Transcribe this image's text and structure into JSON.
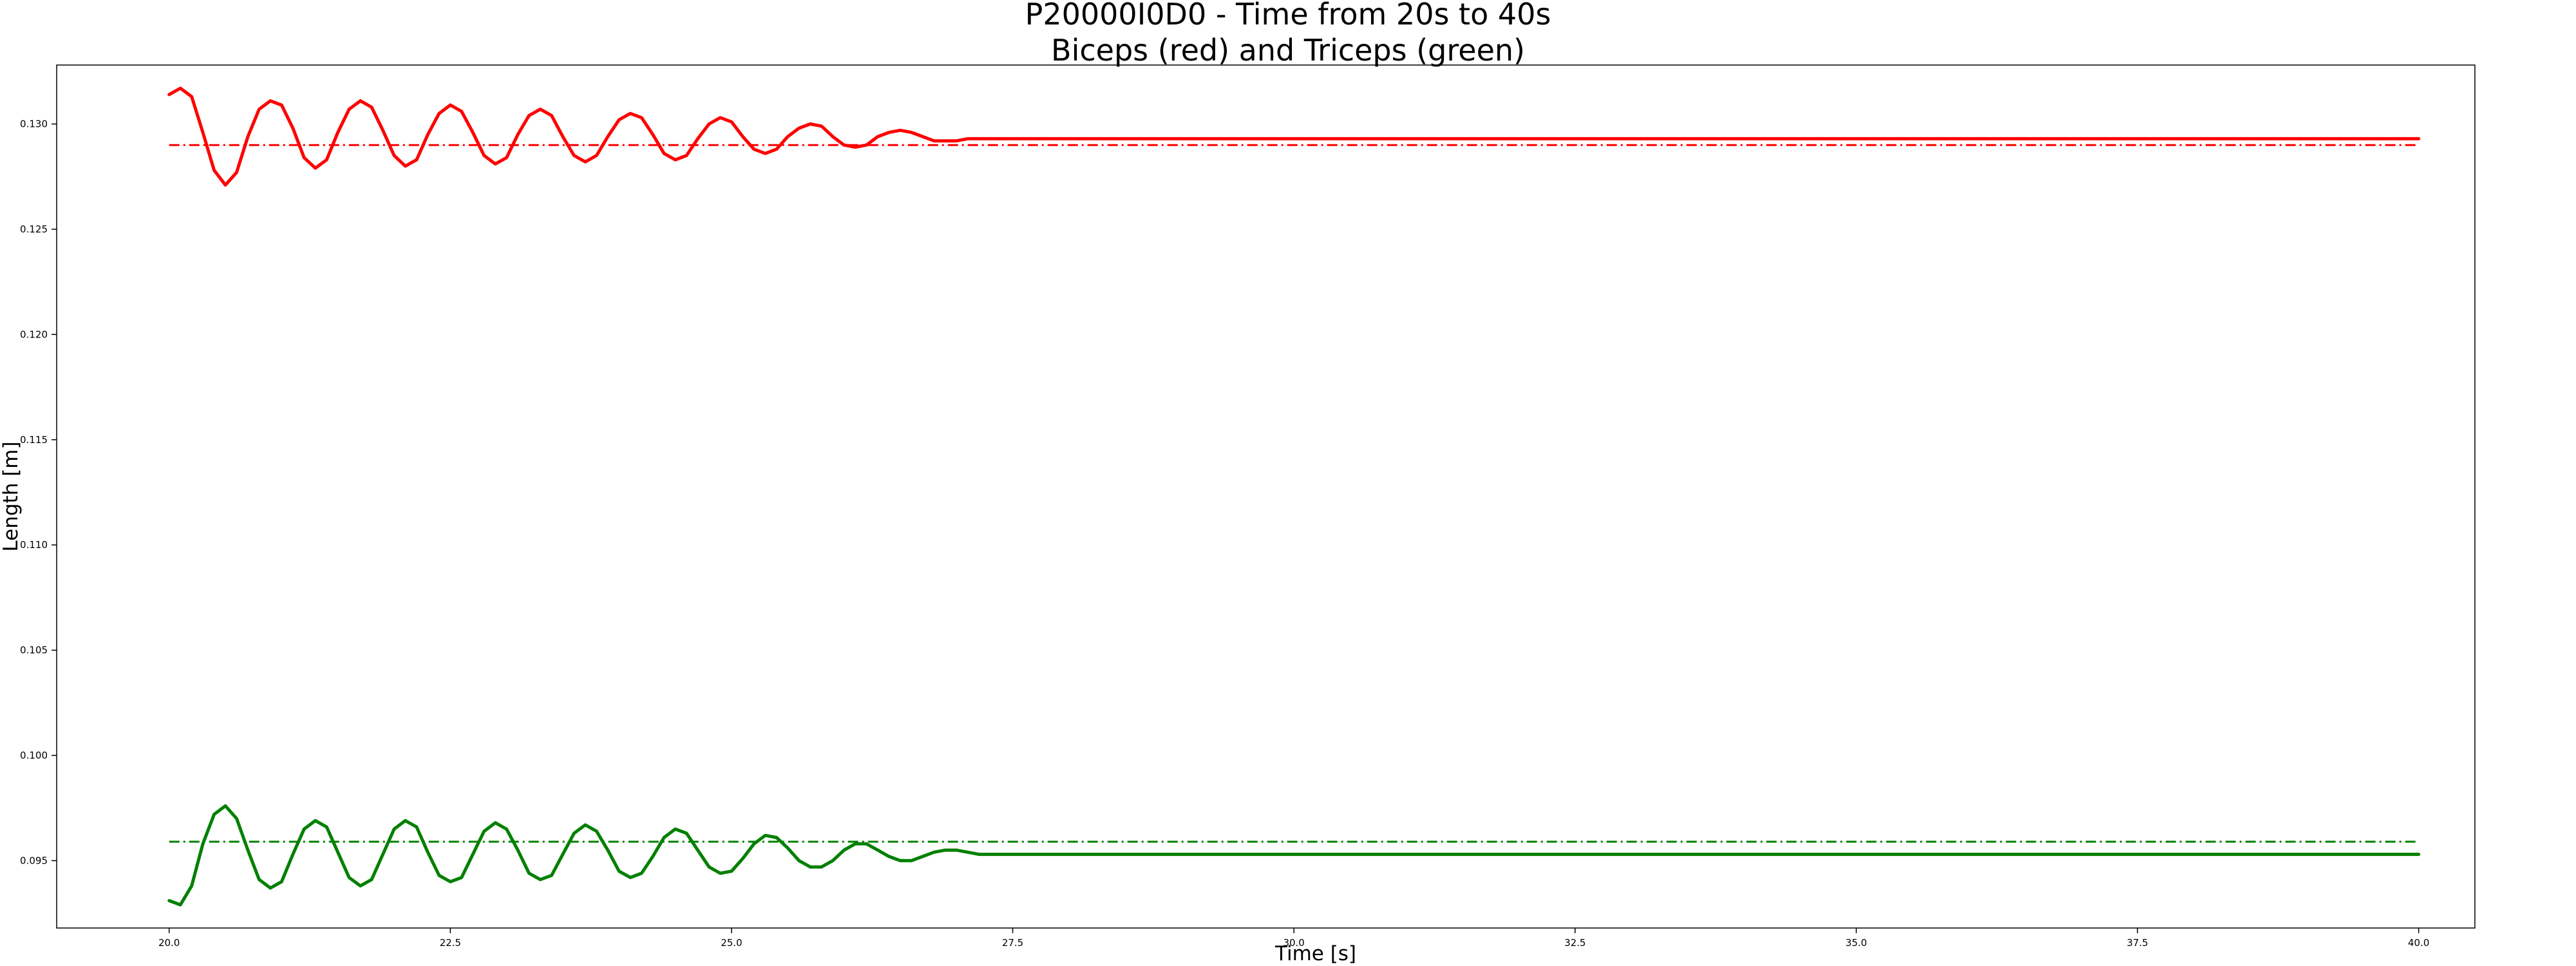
{
  "chart_data": {
    "type": "line",
    "title": "P20000I0D0 - Time from 20s to 40s",
    "subtitle": "Biceps (red) and Triceps (green)",
    "xlabel": "Time [s]",
    "ylabel": "Length [m]",
    "xlim": [
      19.0,
      40.5
    ],
    "ylim": [
      0.0918,
      0.1328
    ],
    "xticks": [
      20.0,
      22.5,
      25.0,
      27.5,
      30.0,
      32.5,
      35.0,
      37.5,
      40.0
    ],
    "xtick_labels": [
      "20.0",
      "22.5",
      "25.0",
      "27.5",
      "30.0",
      "32.5",
      "35.0",
      "37.5",
      "40.0"
    ],
    "yticks": [
      0.095,
      0.1,
      0.105,
      0.11,
      0.115,
      0.12,
      0.125,
      0.13
    ],
    "ytick_labels": [
      "0.095",
      "0.100",
      "0.105",
      "0.110",
      "0.115",
      "0.120",
      "0.125",
      "0.130"
    ],
    "grid": false,
    "legend": "none",
    "series": [
      {
        "style": "solid",
        "color": "#ff0000",
        "x": [
          20.0,
          20.1,
          20.2,
          20.3,
          20.4,
          20.5,
          20.6,
          20.7,
          20.8,
          20.9,
          21.0,
          21.1,
          21.2,
          21.3,
          21.4,
          21.5,
          21.6,
          21.7,
          21.8,
          21.9,
          22.0,
          22.1,
          22.2,
          22.3,
          22.4,
          22.5,
          22.6,
          22.7,
          22.8,
          22.9,
          23.0,
          23.1,
          23.2,
          23.3,
          23.4,
          23.5,
          23.6,
          23.7,
          23.8,
          23.9,
          24.0,
          24.1,
          24.2,
          24.3,
          24.4,
          24.5,
          24.6,
          24.7,
          24.8,
          24.9,
          25.0,
          25.1,
          25.2,
          25.3,
          25.4,
          25.5,
          25.6,
          25.7,
          25.8,
          25.9,
          26.0,
          26.1,
          26.2,
          26.3,
          26.4,
          26.5,
          26.6,
          26.7,
          26.8,
          26.9,
          27.0,
          27.1,
          27.2,
          27.3,
          27.4,
          27.5,
          27.6,
          27.7,
          27.8,
          27.9,
          28.0,
          28.5,
          29.0,
          30.0,
          32.5,
          35.0,
          37.5,
          40.0
        ],
        "y": [
          0.1314,
          0.1317,
          0.1313,
          0.1296,
          0.1278,
          0.1271,
          0.1277,
          0.1294,
          0.1307,
          0.1311,
          0.1309,
          0.1298,
          0.1284,
          0.1279,
          0.1283,
          0.1296,
          0.1307,
          0.1311,
          0.1308,
          0.1297,
          0.1285,
          0.128,
          0.1283,
          0.1295,
          0.1305,
          0.1309,
          0.1306,
          0.1296,
          0.1285,
          0.1281,
          0.1284,
          0.1295,
          0.1304,
          0.1307,
          0.1304,
          0.1294,
          0.1285,
          0.1282,
          0.1285,
          0.1294,
          0.1302,
          0.1305,
          0.1303,
          0.1295,
          0.1286,
          0.1283,
          0.1285,
          0.1293,
          0.13,
          0.1303,
          0.1301,
          0.1294,
          0.1288,
          0.1286,
          0.1288,
          0.1294,
          0.1298,
          0.13,
          0.1299,
          0.1294,
          0.129,
          0.1289,
          0.129,
          0.1294,
          0.1296,
          0.1297,
          0.1296,
          0.1294,
          0.1292,
          0.1292,
          0.1292,
          0.1293,
          0.1293,
          0.1293,
          0.1293,
          0.1293,
          0.1293,
          0.1293,
          0.1293,
          0.1293,
          0.1293,
          0.1293,
          0.1293,
          0.1293,
          0.1293,
          0.1293,
          0.1293,
          0.1293
        ]
      },
      {
        "style": "dashdot",
        "color": "#ff0000",
        "x": [
          20.0,
          40.0
        ],
        "y": [
          0.129,
          0.129
        ]
      },
      {
        "style": "solid",
        "color": "#008000",
        "x": [
          20.0,
          20.1,
          20.2,
          20.3,
          20.4,
          20.5,
          20.6,
          20.7,
          20.8,
          20.9,
          21.0,
          21.1,
          21.2,
          21.3,
          21.4,
          21.5,
          21.6,
          21.7,
          21.8,
          21.9,
          22.0,
          22.1,
          22.2,
          22.3,
          22.4,
          22.5,
          22.6,
          22.7,
          22.8,
          22.9,
          23.0,
          23.1,
          23.2,
          23.3,
          23.4,
          23.5,
          23.6,
          23.7,
          23.8,
          23.9,
          24.0,
          24.1,
          24.2,
          24.3,
          24.4,
          24.5,
          24.6,
          24.7,
          24.8,
          24.9,
          25.0,
          25.1,
          25.2,
          25.3,
          25.4,
          25.5,
          25.6,
          25.7,
          25.8,
          25.9,
          26.0,
          26.1,
          26.2,
          26.3,
          26.4,
          26.5,
          26.6,
          26.7,
          26.8,
          26.9,
          27.0,
          27.1,
          27.2,
          27.3,
          27.4,
          27.5,
          27.6,
          27.7,
          27.8,
          27.9,
          28.0,
          28.5,
          29.0,
          30.0,
          32.5,
          35.0,
          37.5,
          40.0
        ],
        "y": [
          0.0931,
          0.0929,
          0.0938,
          0.0958,
          0.0972,
          0.0976,
          0.097,
          0.0955,
          0.0941,
          0.0937,
          0.094,
          0.0953,
          0.0965,
          0.0969,
          0.0966,
          0.0954,
          0.0942,
          0.0938,
          0.0941,
          0.0953,
          0.0965,
          0.0969,
          0.0966,
          0.0954,
          0.0943,
          0.094,
          0.0942,
          0.0953,
          0.0964,
          0.0968,
          0.0965,
          0.0955,
          0.0944,
          0.0941,
          0.0943,
          0.0953,
          0.0963,
          0.0967,
          0.0964,
          0.0955,
          0.0945,
          0.0942,
          0.0944,
          0.0952,
          0.0961,
          0.0965,
          0.0963,
          0.0955,
          0.0947,
          0.0944,
          0.0945,
          0.0951,
          0.0958,
          0.0962,
          0.0961,
          0.0956,
          0.095,
          0.0947,
          0.0947,
          0.095,
          0.0955,
          0.0958,
          0.0958,
          0.0955,
          0.0952,
          0.095,
          0.095,
          0.0952,
          0.0954,
          0.0955,
          0.0955,
          0.0954,
          0.0953,
          0.0953,
          0.0953,
          0.0953,
          0.0953,
          0.0953,
          0.0953,
          0.0953,
          0.0953,
          0.0953,
          0.0953,
          0.0953,
          0.0953,
          0.0953,
          0.0953,
          0.0953
        ]
      },
      {
        "style": "dashdot",
        "color": "#008000",
        "x": [
          20.0,
          40.0
        ],
        "y": [
          0.0959,
          0.0959
        ]
      }
    ]
  }
}
